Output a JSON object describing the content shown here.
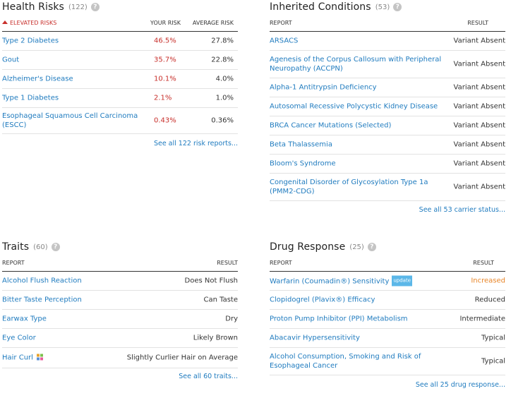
{
  "health_risks": {
    "title": "Health Risks",
    "count": "(122)",
    "col_elevated": "ELEVATED RISKS",
    "col_your": "YOUR RISK",
    "col_avg": "AVERAGE RISK",
    "rows": [
      {
        "name": "Type 2 Diabetes",
        "your": "46.5%",
        "avg": "27.8%"
      },
      {
        "name": "Gout",
        "your": "35.7%",
        "avg": "22.8%"
      },
      {
        "name": "Alzheimer's Disease",
        "your": "10.1%",
        "avg": "4.0%"
      },
      {
        "name": "Type 1 Diabetes",
        "your": "2.1%",
        "avg": "1.0%"
      },
      {
        "name": "Esophageal Squamous Cell Carcinoma (ESCC)",
        "your": "0.43%",
        "avg": "0.36%"
      }
    ],
    "see_all": "See all 122 risk reports..."
  },
  "inherited": {
    "title": "Inherited Conditions",
    "count": "(53)",
    "col_report": "REPORT",
    "col_result": "RESULT",
    "rows": [
      {
        "name": "ARSACS",
        "result": "Variant Absent"
      },
      {
        "name": "Agenesis of the Corpus Callosum with Peripheral Neuropathy (ACCPN)",
        "result": "Variant Absent"
      },
      {
        "name": "Alpha-1 Antitrypsin Deficiency",
        "result": "Variant Absent"
      },
      {
        "name": "Autosomal Recessive Polycystic Kidney Disease",
        "result": "Variant Absent"
      },
      {
        "name": "BRCA Cancer Mutations (Selected)",
        "result": "Variant Absent"
      },
      {
        "name": "Beta Thalassemia",
        "result": "Variant Absent"
      },
      {
        "name": "Bloom's Syndrome",
        "result": "Variant Absent"
      },
      {
        "name": "Congenital Disorder of Glycosylation Type 1a (PMM2-CDG)",
        "result": "Variant Absent"
      }
    ],
    "see_all": "See all 53 carrier status..."
  },
  "traits": {
    "title": "Traits",
    "count": "(60)",
    "col_report": "REPORT",
    "col_result": "RESULT",
    "rows": [
      {
        "name": "Alcohol Flush Reaction",
        "result": "Does Not Flush"
      },
      {
        "name": "Bitter Taste Perception",
        "result": "Can Taste"
      },
      {
        "name": "Earwax Type",
        "result": "Dry"
      },
      {
        "name": "Eye Color",
        "result": "Likely Brown"
      },
      {
        "name": "Hair Curl",
        "result": "Slightly Curlier Hair on Average"
      }
    ],
    "see_all": "See all 60 traits..."
  },
  "drug": {
    "title": "Drug Response",
    "count": "(25)",
    "col_report": "REPORT",
    "col_result": "RESULT",
    "badge": "update",
    "rows": [
      {
        "name": "Warfarin (Coumadin®) Sensitivity",
        "result": "Increased"
      },
      {
        "name": "Clopidogrel (Plavix®) Efficacy",
        "result": "Reduced"
      },
      {
        "name": "Proton Pump Inhibitor (PPI) Metabolism",
        "result": "Intermediate"
      },
      {
        "name": "Abacavir Hypersensitivity",
        "result": "Typical"
      },
      {
        "name": "Alcohol Consumption, Smoking and Risk of Esophageal Cancer",
        "result": "Typical"
      }
    ],
    "see_all": "See all 25 drug response..."
  },
  "colors": {
    "link": "#1f7bbf",
    "elevated": "#c8302c",
    "increased": "#e8862a",
    "badge": "#5bb7e8"
  },
  "icons": {
    "help": "question-circle-icon",
    "elevated": "arrow-up-icon",
    "new_feature": "pinwheel-icon"
  }
}
